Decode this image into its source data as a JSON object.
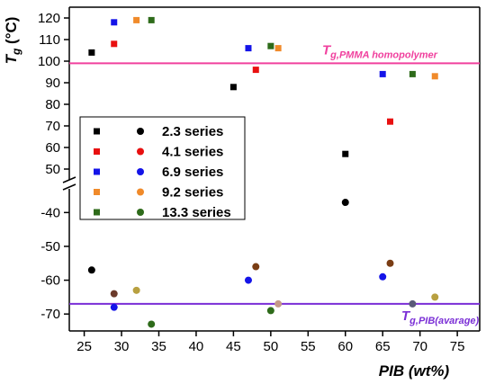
{
  "chart_data": {
    "type": "scatter",
    "title": "",
    "xlabel": "PIB (wt%)",
    "ylabel": "Tg (°C)",
    "ylabel_main": "T",
    "ylabel_sub": "g",
    "ylabel_rest": " (°C)",
    "xlim": [
      23,
      78
    ],
    "x_ticks": [
      25,
      30,
      35,
      40,
      45,
      50,
      55,
      60,
      65,
      70,
      75
    ],
    "x_tick_labels": [
      "25",
      "30",
      "35",
      "40",
      "45",
      "50",
      "55",
      "60",
      "65",
      "70",
      "75"
    ],
    "y_axis_broken": true,
    "y_upper": {
      "ylim": [
        45,
        125
      ],
      "ticks": [
        50,
        60,
        70,
        80,
        90,
        100,
        110,
        120
      ],
      "tick_labels": [
        "50",
        "60",
        "70",
        "80",
        "90",
        "100",
        "110",
        "120"
      ]
    },
    "y_lower": {
      "ylim": [
        -75,
        -33
      ],
      "ticks": [
        -70,
        -60,
        -50,
        -40
      ],
      "tick_labels": [
        "-70",
        "-60",
        "-50",
        "-40"
      ]
    },
    "grid": false,
    "legend_position": "left-middle",
    "legend": {
      "labels": [
        "2.3 series",
        "4.1 series",
        "6.9 series",
        "9.2 series",
        "13.3 series"
      ],
      "colors": [
        "#000000",
        "#e81010",
        "#1414e8",
        "#f08a2a",
        "#2e6b1a"
      ]
    },
    "series": [
      {
        "name": "2.3 series",
        "color": "#000000",
        "squares": [
          {
            "x": 26,
            "y": 104
          },
          {
            "x": 45,
            "y": 88
          },
          {
            "x": 60,
            "y": 57
          }
        ],
        "circles": [
          {
            "x": 26,
            "y": -57
          },
          {
            "x": 60,
            "y": -37
          }
        ]
      },
      {
        "name": "4.1 series",
        "color": "#e81010",
        "squares": [
          {
            "x": 29,
            "y": 108
          },
          {
            "x": 48,
            "y": 96
          },
          {
            "x": 66,
            "y": 72
          }
        ],
        "circles": []
      },
      {
        "name": "6.9 series",
        "color": "#1414e8",
        "squares": [
          {
            "x": 29,
            "y": 118
          },
          {
            "x": 47,
            "y": 106
          },
          {
            "x": 65,
            "y": 94
          }
        ],
        "circles": [
          {
            "x": 29,
            "y": -68
          },
          {
            "x": 47,
            "y": -60
          },
          {
            "x": 65,
            "y": -59
          }
        ]
      },
      {
        "name": "9.2 series",
        "color": "#f08a2a",
        "squares": [
          {
            "x": 32,
            "y": 119
          },
          {
            "x": 51,
            "y": 106
          },
          {
            "x": 72,
            "y": 93
          }
        ],
        "circles": []
      },
      {
        "name": "13.3 series",
        "color": "#2e6b1a",
        "squares": [
          {
            "x": 34,
            "y": 119
          },
          {
            "x": 50,
            "y": 107
          },
          {
            "x": 69,
            "y": 94
          }
        ],
        "circles": [
          {
            "x": 34,
            "y": -73
          },
          {
            "x": 50,
            "y": -69
          }
        ]
      }
    ],
    "other_circles": [
      {
        "x": 29,
        "y": -64,
        "color": "#6b3a2a"
      },
      {
        "x": 32,
        "y": -63,
        "color": "#b8a040"
      },
      {
        "x": 48,
        "y": -56,
        "color": "#7a3d14"
      },
      {
        "x": 51,
        "y": -67,
        "color": "#c49a88"
      },
      {
        "x": 66,
        "y": -55,
        "color": "#7a3d14"
      },
      {
        "x": 69,
        "y": -67,
        "color": "#5a5a78"
      },
      {
        "x": 72,
        "y": -65,
        "color": "#b8a040"
      }
    ],
    "reference_lines": [
      {
        "name": "Tg,PMMA homopolymer",
        "label_main": "T",
        "label_sub": "g,PMMA homopolymer",
        "y": 99,
        "panel": "upper",
        "color": "#f0409e"
      },
      {
        "name": "Tg,PIB(avarage)",
        "label_main": "T",
        "label_sub": "g,PIB(avarage)",
        "y": -67,
        "panel": "lower",
        "color": "#7a2ed6"
      }
    ]
  }
}
